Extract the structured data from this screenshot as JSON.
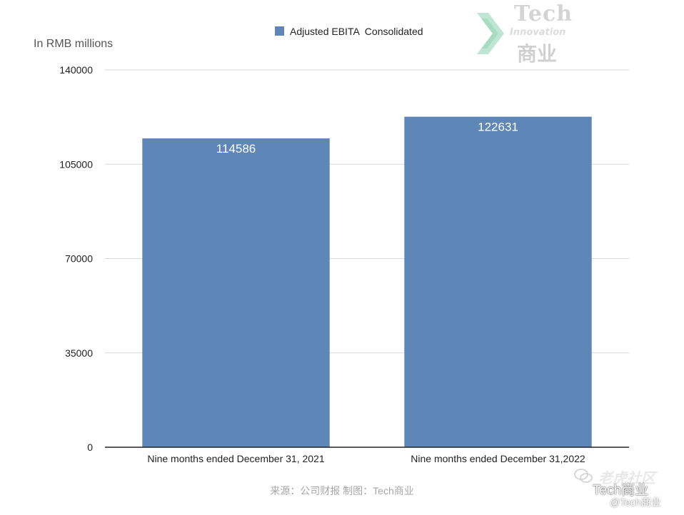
{
  "chart_data": {
    "type": "bar",
    "title": "",
    "ylabel": "In RMB millions",
    "xlabel": "",
    "categories": [
      "Nine months ended December 31, 2021",
      "Nine months ended December 31,2022"
    ],
    "series": [
      {
        "name": "Adjusted EBITA  Consolidated",
        "values": [
          114586,
          122631
        ],
        "color": "#5e87b8"
      }
    ],
    "ylim": [
      0,
      140000
    ],
    "yticks": [
      0,
      35000,
      70000,
      105000,
      140000
    ],
    "ytick_labels": [
      "0",
      "35000",
      "70000",
      "105000",
      "140000"
    ],
    "data_labels": [
      "114586",
      "122631"
    ],
    "grid": true,
    "legend_position": "top-center"
  },
  "colors": {
    "bar": "#5e87b8",
    "grid": "#d9d9d9",
    "axis": "#222222",
    "text": "#222222",
    "data_label": "#ffffff"
  },
  "source_note": "来源：公司财报 制图：Tech商业",
  "watermark": {
    "logo_top": "Tech",
    "logo_middle": "Innovation",
    "logo_bottom": "商业",
    "community": "老虎社区",
    "brand": "Tech商业",
    "handle": "@Tech商业"
  }
}
